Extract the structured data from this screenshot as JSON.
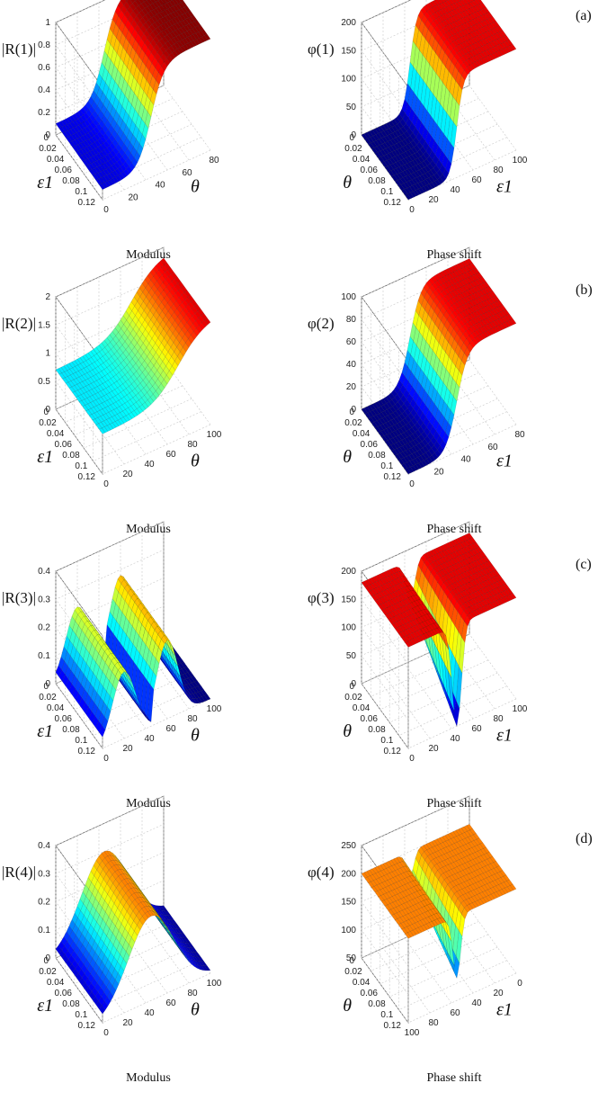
{
  "panels": [
    {
      "label": "(a)",
      "left": {
        "zlabel": "|R(1)|",
        "zsym": "R",
        "zsup": "(1)",
        "abs": true,
        "zticks": [
          "0",
          "0.2",
          "0.4",
          "0.6",
          "0.8",
          "1"
        ],
        "xticks": [
          "0",
          "20",
          "40",
          "60",
          "80"
        ],
        "xlabel": "θ",
        "yticks": [
          "0",
          "0.02",
          "0.04",
          "0.06",
          "0.08",
          "0.1",
          "0.12"
        ],
        "ylabel": "ε1",
        "caption": "Modulus"
      },
      "right": {
        "zlabel": "φ(1)",
        "zsym": "φ",
        "zsup": "(1)",
        "abs": false,
        "zticks": [
          "0",
          "50",
          "100",
          "150",
          "200"
        ],
        "xticks": [
          "0",
          "20",
          "40",
          "60",
          "80",
          "100"
        ],
        "xlabel": "ε1",
        "yticks": [
          "0",
          "0.02",
          "0.04",
          "0.06",
          "0.08",
          "0.1",
          "0.12"
        ],
        "ylabel": "θ",
        "caption": "Phase shift"
      }
    },
    {
      "label": "(b)",
      "left": {
        "zlabel": "|R(2)|",
        "zsym": "R",
        "zsup": "(2)",
        "abs": true,
        "zticks": [
          "0",
          "0.5",
          "1",
          "1.5",
          "2"
        ],
        "xticks": [
          "0",
          "20",
          "40",
          "60",
          "80",
          "100"
        ],
        "xlabel": "θ",
        "yticks": [
          "0",
          "0.02",
          "0.04",
          "0.06",
          "0.08",
          "0.1",
          "0.12"
        ],
        "ylabel": "ε1",
        "caption": "Modulus"
      },
      "right": {
        "zlabel": "φ(2)",
        "zsym": "φ",
        "zsup": "(2)",
        "abs": false,
        "zticks": [
          "0",
          "20",
          "40",
          "60",
          "80",
          "100"
        ],
        "xticks": [
          "0",
          "20",
          "40",
          "60",
          "80"
        ],
        "xlabel": "ε1",
        "yticks": [
          "0",
          "0.02",
          "0.04",
          "0.06",
          "0.08",
          "0.1",
          "0.12"
        ],
        "ylabel": "θ",
        "caption": "Phase shift"
      }
    },
    {
      "label": "(c)",
      "left": {
        "zlabel": "|R(3)|",
        "zsym": "R",
        "zsup": "(3)",
        "abs": true,
        "zticks": [
          "0",
          "0.1",
          "0.2",
          "0.3",
          "0.4"
        ],
        "xticks": [
          "0",
          "20",
          "40",
          "60",
          "80",
          "100"
        ],
        "xlabel": "θ",
        "yticks": [
          "0",
          "0.02",
          "0.04",
          "0.06",
          "0.08",
          "0.1",
          "0.12"
        ],
        "ylabel": "ε1",
        "caption": "Modulus"
      },
      "right": {
        "zlabel": "φ(3)",
        "zsym": "φ",
        "zsup": "(3)",
        "abs": false,
        "zticks": [
          "0",
          "50",
          "100",
          "150",
          "200"
        ],
        "xticks": [
          "0",
          "20",
          "40",
          "60",
          "80",
          "100"
        ],
        "xlabel": "ε1",
        "yticks": [
          "0",
          "0.02",
          "0.04",
          "0.06",
          "0.08",
          "0.1",
          "0.12"
        ],
        "ylabel": "θ",
        "caption": "Phase shift"
      }
    },
    {
      "label": "(d)",
      "left": {
        "zlabel": "|R(4)|",
        "zsym": "R",
        "zsup": "(4)",
        "abs": true,
        "zticks": [
          "0",
          "0.1",
          "0.2",
          "0.3",
          "0.4"
        ],
        "xticks": [
          "0",
          "20",
          "40",
          "60",
          "80",
          "100"
        ],
        "xlabel": "θ",
        "yticks": [
          "0",
          "0.02",
          "0.04",
          "0.06",
          "0.08",
          "0.1",
          "0.12"
        ],
        "ylabel": "ε1",
        "caption": "Modulus"
      },
      "right": {
        "zlabel": "φ(4)",
        "zsym": "φ",
        "zsup": "(4)",
        "abs": false,
        "zticks": [
          "50",
          "100",
          "150",
          "200",
          "250"
        ],
        "xticks": [
          "100",
          "80",
          "60",
          "40",
          "20",
          "0"
        ],
        "xlabel": "ε1",
        "yticks": [
          "0",
          "0.02",
          "0.04",
          "0.06",
          "0.08",
          "0.1",
          "0.12"
        ],
        "ylabel": "θ",
        "caption": "Phase shift"
      }
    }
  ],
  "chart_data": [
    {
      "type": "surface",
      "panel": "(a)",
      "side": "left",
      "caption": "Modulus",
      "zlabel": "|R(1)|",
      "xlabel": "θ",
      "ylabel": "ε1",
      "zlim": [
        0,
        1
      ],
      "xlim": [
        0,
        90
      ],
      "ylim": [
        0,
        0.12
      ],
      "colormap": "jet",
      "shape": "step",
      "low": 0.1,
      "high": 1.0,
      "edge": 45,
      "width": 6,
      "tilt": -0.2,
      "ridge": 0
    },
    {
      "type": "surface",
      "panel": "(a)",
      "side": "right",
      "caption": "Phase shift",
      "zlabel": "φ(1)",
      "xlabel": "ε1",
      "ylabel": "θ",
      "zlim": [
        0,
        200
      ],
      "xlim": [
        0,
        100
      ],
      "ylim": [
        0,
        0.12
      ],
      "colormap": "jet",
      "shape": "step",
      "low": 0,
      "high": 180,
      "edge": 45,
      "width": 3,
      "tilt": 0,
      "ridge": 0
    },
    {
      "type": "surface",
      "panel": "(b)",
      "side": "left",
      "caption": "Modulus",
      "zlabel": "|R(2)|",
      "xlabel": "θ",
      "ylabel": "ε1",
      "zlim": [
        0,
        2
      ],
      "xlim": [
        0,
        100
      ],
      "ylim": [
        0,
        0.12
      ],
      "colormap": "jet",
      "shape": "step",
      "low": 0.7,
      "high": 1.9,
      "edge": 70,
      "width": 12,
      "tilt": 0.1,
      "ridge": 0
    },
    {
      "type": "surface",
      "panel": "(b)",
      "side": "right",
      "caption": "Phase shift",
      "zlabel": "φ(2)",
      "xlabel": "ε1",
      "ylabel": "θ",
      "zlim": [
        0,
        100
      ],
      "xlim": [
        0,
        90
      ],
      "ylim": [
        0,
        0.12
      ],
      "colormap": "jet",
      "shape": "step",
      "low": 0,
      "high": 90,
      "edge": 45,
      "width": 5,
      "tilt": 0,
      "ridge": 0
    },
    {
      "type": "surface",
      "panel": "(c)",
      "side": "left",
      "caption": "Modulus",
      "zlabel": "|R(3)|",
      "xlabel": "θ",
      "ylabel": "ε1",
      "zlim": [
        0,
        0.4
      ],
      "xlim": [
        0,
        100
      ],
      "ylim": [
        0,
        0.12
      ],
      "colormap": "jet",
      "shape": "humps",
      "low": 0,
      "high": 0.28,
      "edge": 45,
      "width": 6,
      "tilt": 0,
      "ridge": 0
    },
    {
      "type": "surface",
      "panel": "(c)",
      "side": "right",
      "caption": "Phase shift",
      "zlabel": "φ(3)",
      "xlabel": "ε1",
      "ylabel": "θ",
      "zlim": [
        0,
        200
      ],
      "xlim": [
        0,
        100
      ],
      "ylim": [
        0,
        0.12
      ],
      "colormap": "jet",
      "shape": "notch",
      "low": 0,
      "high": 180,
      "edge": 45,
      "width": 6,
      "tilt": 0,
      "ridge": 0
    },
    {
      "type": "surface",
      "panel": "(d)",
      "side": "left",
      "caption": "Modulus",
      "zlabel": "|R(4)|",
      "xlabel": "θ",
      "ylabel": "ε1",
      "zlim": [
        0,
        0.4
      ],
      "xlim": [
        0,
        100
      ],
      "ylim": [
        0,
        0.12
      ],
      "colormap": "jet",
      "shape": "bell",
      "low": 0,
      "high": 0.3,
      "edge": 45,
      "width": 30,
      "tilt": 0,
      "ridge": 0
    },
    {
      "type": "surface",
      "panel": "(d)",
      "side": "right",
      "caption": "Phase shift",
      "zlabel": "φ(4)",
      "xlabel": "ε1",
      "ylabel": "θ",
      "zlim": [
        50,
        250
      ],
      "xlim": [
        100,
        0
      ],
      "ylim": [
        0,
        0.12
      ],
      "colormap": "jet",
      "shape": "notch",
      "low": 90,
      "high": 200,
      "edge": 45,
      "width": 5,
      "tilt": 0,
      "ridge": 0
    }
  ]
}
